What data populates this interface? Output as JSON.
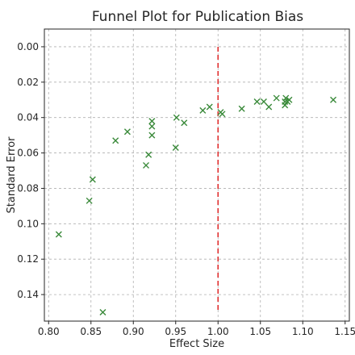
{
  "chart_data": {
    "type": "scatter",
    "title": "Funnel Plot for Publication Bias",
    "xlabel": "Effect Size",
    "ylabel": "Standard Error",
    "xlim": [
      0.795,
      1.155
    ],
    "ylim": [
      0.155,
      -0.01
    ],
    "y_inverted": true,
    "x_ticks": [
      "0.80",
      "0.85",
      "0.90",
      "0.95",
      "1.00",
      "1.05",
      "1.10",
      "1.15"
    ],
    "x_tick_values": [
      0.8,
      0.85,
      0.9,
      0.95,
      1.0,
      1.05,
      1.1,
      1.15
    ],
    "y_ticks": [
      "0.00",
      "0.02",
      "0.04",
      "0.06",
      "0.08",
      "0.10",
      "0.12",
      "0.14"
    ],
    "y_tick_values": [
      0.0,
      0.02,
      0.04,
      0.06,
      0.08,
      0.1,
      0.12,
      0.14
    ],
    "grid": true,
    "marker": "x",
    "marker_color": "#3a8a3a",
    "reference_line": {
      "x": 1.0,
      "y_from": 0.0,
      "y_to": 0.15,
      "color": "#e03030",
      "style": "dashed"
    },
    "points": [
      {
        "x": 0.812,
        "y": 0.106
      },
      {
        "x": 0.848,
        "y": 0.087
      },
      {
        "x": 0.852,
        "y": 0.075
      },
      {
        "x": 0.864,
        "y": 0.15
      },
      {
        "x": 0.879,
        "y": 0.053
      },
      {
        "x": 0.893,
        "y": 0.048
      },
      {
        "x": 0.915,
        "y": 0.067
      },
      {
        "x": 0.918,
        "y": 0.061
      },
      {
        "x": 0.922,
        "y": 0.042
      },
      {
        "x": 0.922,
        "y": 0.045
      },
      {
        "x": 0.922,
        "y": 0.05
      },
      {
        "x": 0.95,
        "y": 0.057
      },
      {
        "x": 0.951,
        "y": 0.04
      },
      {
        "x": 0.96,
        "y": 0.043
      },
      {
        "x": 0.982,
        "y": 0.036
      },
      {
        "x": 0.99,
        "y": 0.034
      },
      {
        "x": 1.003,
        "y": 0.037
      },
      {
        "x": 1.005,
        "y": 0.038
      },
      {
        "x": 1.028,
        "y": 0.035
      },
      {
        "x": 1.046,
        "y": 0.031
      },
      {
        "x": 1.054,
        "y": 0.031
      },
      {
        "x": 1.06,
        "y": 0.034
      },
      {
        "x": 1.069,
        "y": 0.029
      },
      {
        "x": 1.079,
        "y": 0.031
      },
      {
        "x": 1.079,
        "y": 0.033
      },
      {
        "x": 1.08,
        "y": 0.029
      },
      {
        "x": 1.082,
        "y": 0.031
      },
      {
        "x": 1.084,
        "y": 0.03
      },
      {
        "x": 1.136,
        "y": 0.03
      }
    ]
  }
}
